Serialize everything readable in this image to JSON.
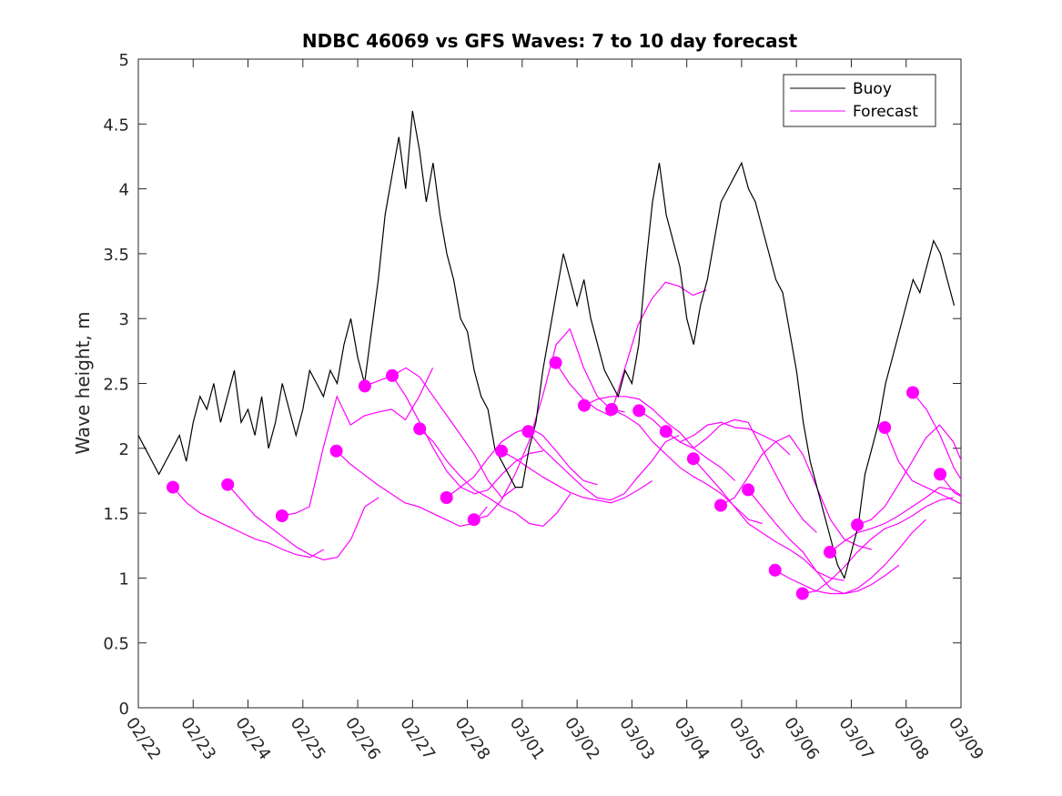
{
  "chart_data": {
    "type": "line",
    "title": "NDBC 46069 vs GFS Waves: 7 to 10 day forecast",
    "xlabel": "",
    "ylabel": "Wave height, m",
    "ylim": [
      0,
      5
    ],
    "yticks": [
      0,
      0.5,
      1,
      1.5,
      2,
      2.5,
      3,
      3.5,
      4,
      4.5,
      5
    ],
    "ytick_labels": [
      "0",
      "0.5",
      "1",
      "1.5",
      "2",
      "2.5",
      "3",
      "3.5",
      "4",
      "4.5",
      "5"
    ],
    "xlim_days": [
      0,
      15
    ],
    "xtick_labels": [
      "02/22",
      "02/23",
      "02/24",
      "02/25",
      "02/26",
      "02/27",
      "02/28",
      "03/01",
      "03/02",
      "03/03",
      "03/04",
      "03/05",
      "03/06",
      "03/07",
      "03/08",
      "03/09"
    ],
    "x_units": "days since 02/22 00:00",
    "grid": false,
    "legend": {
      "placement": "top-right",
      "entries": [
        {
          "label": "Buoy",
          "color": "#000000"
        },
        {
          "label": "Forecast",
          "color": "#ff00ff"
        }
      ]
    },
    "series": [
      {
        "name": "Buoy",
        "color": "#000000",
        "x_start": 0,
        "x_step": 0.125,
        "values": [
          2.1,
          2.0,
          1.9,
          1.8,
          1.9,
          2.0,
          2.1,
          1.9,
          2.2,
          2.4,
          2.3,
          2.5,
          2.2,
          2.4,
          2.6,
          2.2,
          2.3,
          2.1,
          2.4,
          2.0,
          2.2,
          2.5,
          2.3,
          2.1,
          2.3,
          2.6,
          2.5,
          2.4,
          2.6,
          2.5,
          2.8,
          3.0,
          2.7,
          2.5,
          2.9,
          3.3,
          3.8,
          4.1,
          4.4,
          4.0,
          4.6,
          4.3,
          3.9,
          4.2,
          3.8,
          3.5,
          3.3,
          3.0,
          2.9,
          2.6,
          2.4,
          2.3,
          2.0,
          1.9,
          1.8,
          1.7,
          1.7,
          2.0,
          2.2,
          2.6,
          2.9,
          3.2,
          3.5,
          3.3,
          3.1,
          3.3,
          3.0,
          2.8,
          2.6,
          2.5,
          2.4,
          2.6,
          2.5,
          2.8,
          3.4,
          3.9,
          4.2,
          3.8,
          3.6,
          3.4,
          3.0,
          2.8,
          3.1,
          3.3,
          3.6,
          3.9,
          4.0,
          4.1,
          4.2,
          4.0,
          3.9,
          3.7,
          3.5,
          3.3,
          3.2,
          2.9,
          2.6,
          2.2,
          1.9,
          1.7,
          1.5,
          1.3,
          1.1,
          1.0,
          1.2,
          1.4,
          1.8,
          2.0,
          2.2,
          2.5,
          2.7,
          2.9,
          3.1,
          3.3,
          3.2,
          3.4,
          3.6,
          3.5,
          3.3,
          3.1
        ]
      },
      {
        "name": "Forecast",
        "color": "#ff00ff",
        "x_step": 0.25,
        "runs": [
          {
            "start": 0.63,
            "marker": 1.7,
            "values": [
              1.7,
              1.58,
              1.5,
              1.45,
              1.4,
              1.35,
              1.3,
              1.27,
              1.22,
              1.18,
              1.16,
              1.22
            ]
          },
          {
            "start": 1.63,
            "marker": 1.72,
            "values": [
              1.72,
              1.6,
              1.48,
              1.4,
              1.32,
              1.24,
              1.18,
              1.14,
              1.16,
              1.3,
              1.55,
              1.62
            ]
          },
          {
            "start": 2.62,
            "marker": 1.48,
            "values": [
              1.48,
              1.5,
              1.55,
              2.0,
              2.4,
              2.18,
              2.25,
              2.28,
              2.3,
              2.22,
              2.4,
              2.62
            ]
          },
          {
            "start": 3.61,
            "marker": 1.98,
            "values": [
              1.98,
              1.88,
              1.8,
              1.72,
              1.65,
              1.58,
              1.55,
              1.5,
              1.45,
              1.4,
              1.42,
              1.55
            ]
          },
          {
            "start": 4.13,
            "marker": 2.48,
            "values": [
              2.48,
              2.52,
              2.56,
              2.62,
              2.55,
              2.4,
              2.25,
              2.1,
              1.95,
              1.75,
              1.62,
              1.7
            ]
          },
          {
            "start": 4.63,
            "marker": 2.56,
            "values": [
              2.56,
              2.4,
              2.2,
              2.0,
              1.82,
              1.7,
              1.65,
              1.68,
              1.8,
              1.9,
              1.96,
              1.98
            ]
          },
          {
            "start": 5.13,
            "marker": 2.15,
            "values": [
              2.15,
              2.05,
              1.9,
              1.78,
              1.68,
              1.62,
              1.55,
              1.5,
              1.42,
              1.4,
              1.5,
              1.65
            ]
          },
          {
            "start": 5.62,
            "marker": 1.62,
            "values": [
              1.62,
              1.7,
              1.78,
              1.92,
              2.05,
              2.12,
              2.16,
              2.1,
              1.98,
              1.85,
              1.75,
              1.72
            ]
          },
          {
            "start": 6.12,
            "marker": 1.45,
            "values": [
              1.45,
              1.48,
              1.6,
              1.8,
              2.05,
              2.4,
              2.8,
              2.92,
              2.62,
              2.4,
              2.3,
              2.28
            ]
          },
          {
            "start": 6.62,
            "marker": 1.98,
            "values": [
              1.98,
              1.92,
              1.85,
              1.78,
              1.72,
              1.66,
              1.62,
              1.6,
              1.58,
              1.62,
              1.68,
              1.75
            ]
          },
          {
            "start": 7.11,
            "marker": 2.13,
            "values": [
              2.13,
              2.0,
              1.9,
              1.8,
              1.7,
              1.62,
              1.6,
              1.65,
              1.78,
              1.9,
              2.05,
              2.1
            ]
          },
          {
            "start": 7.61,
            "marker": 2.66,
            "values": [
              2.66,
              2.5,
              2.38,
              2.3,
              2.25,
              2.6,
              2.95,
              3.15,
              3.28,
              3.25,
              3.18,
              3.22
            ]
          },
          {
            "start": 8.13,
            "marker": 2.33,
            "values": [
              2.33,
              2.38,
              2.4,
              2.4,
              2.38,
              2.3,
              2.2,
              2.12,
              2.0,
              1.92,
              1.85,
              1.75
            ]
          },
          {
            "start": 8.63,
            "marker": 2.3,
            "values": [
              2.3,
              2.25,
              2.18,
              2.05,
              1.95,
              1.85,
              1.78,
              1.72,
              1.65,
              1.55,
              1.45,
              1.42
            ]
          },
          {
            "start": 9.13,
            "marker": 2.29,
            "values": [
              2.29,
              2.22,
              2.12,
              2.05,
              2.1,
              2.18,
              2.2,
              2.16,
              2.15,
              2.1,
              2.05,
              1.95
            ]
          },
          {
            "start": 9.62,
            "marker": 2.13,
            "values": [
              2.13,
              2.05,
              2.0,
              2.08,
              2.18,
              2.22,
              2.2,
              2.0,
              1.8,
              1.6,
              1.45,
              1.35
            ]
          },
          {
            "start": 10.12,
            "marker": 1.92,
            "values": [
              1.92,
              1.8,
              1.68,
              1.55,
              1.42,
              1.35,
              1.28,
              1.22,
              1.15,
              1.05,
              1.0,
              0.98
            ]
          },
          {
            "start": 10.62,
            "marker": 1.56,
            "values": [
              1.56,
              1.62,
              1.78,
              1.95,
              2.05,
              2.1,
              1.95,
              1.7,
              1.45,
              1.3,
              1.25,
              1.22
            ]
          },
          {
            "start": 11.12,
            "marker": 1.68,
            "values": [
              1.68,
              1.55,
              1.42,
              1.3,
              1.2,
              1.05,
              0.92,
              0.88,
              0.9,
              0.95,
              1.02,
              1.1
            ]
          },
          {
            "start": 11.61,
            "marker": 1.06,
            "values": [
              1.06,
              1.0,
              0.95,
              0.9,
              0.88,
              0.88,
              0.92,
              1.0,
              1.1,
              1.22,
              1.35,
              1.45
            ]
          },
          {
            "start": 12.11,
            "marker": 0.88,
            "values": [
              0.88,
              0.9,
              0.98,
              1.08,
              1.2,
              1.3,
              1.38,
              1.42,
              1.48,
              1.55,
              1.6,
              1.62
            ]
          },
          {
            "start": 12.61,
            "marker": 1.2,
            "values": [
              1.2,
              1.28,
              1.35,
              1.38,
              1.42,
              1.48,
              1.55,
              1.62,
              1.7,
              1.68,
              1.6,
              1.55
            ]
          },
          {
            "start": 13.11,
            "marker": 1.41,
            "values": [
              1.41,
              1.45,
              1.55,
              1.72,
              1.9,
              2.08,
              2.18,
              2.05,
              1.8,
              1.58,
              1.45,
              1.48
            ]
          },
          {
            "start": 13.61,
            "marker": 2.16,
            "values": [
              2.16,
              1.9,
              1.75,
              1.7,
              1.65,
              1.6,
              1.55,
              1.55,
              1.58,
              1.6,
              1.62,
              1.58
            ]
          },
          {
            "start": 14.12,
            "marker": 2.43,
            "values": [
              2.43,
              2.3,
              2.1,
              1.85,
              1.68,
              1.62,
              1.58,
              1.55,
              1.58,
              1.65,
              1.7,
              1.68
            ]
          },
          {
            "start": 14.62,
            "marker": 1.8,
            "values": [
              1.8,
              1.66,
              1.6,
              1.58,
              1.6
            ]
          }
        ]
      }
    ]
  }
}
